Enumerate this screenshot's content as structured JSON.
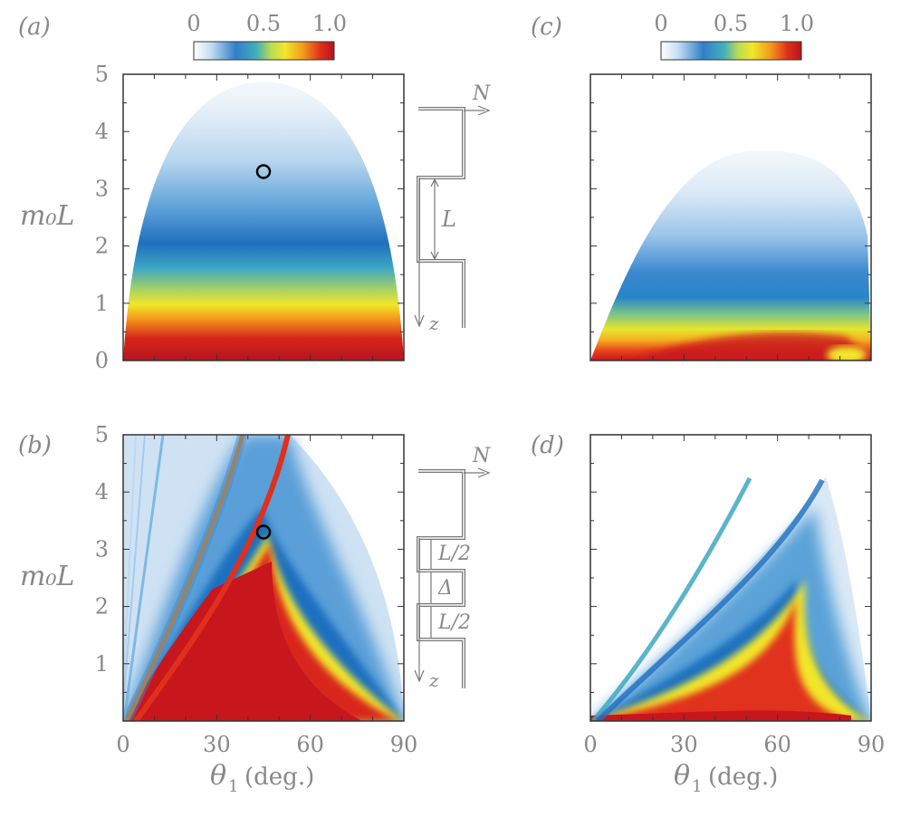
{
  "colors": {
    "cmap": [
      "#ffffff",
      "#cfe3f3",
      "#5aa2d8",
      "#1f6fbf",
      "#3fa7c8",
      "#9fd27a",
      "#f2e62a",
      "#f5a21c",
      "#e83a1d",
      "#c8161d"
    ],
    "axis": "#333333",
    "label": "#888888",
    "marker": "#000000"
  },
  "colorbar": {
    "ticks": [
      "0",
      "0.5",
      "1.0"
    ]
  },
  "axes": {
    "x_ticks": [
      "0",
      "30",
      "60",
      "90"
    ],
    "y_ticks_a": [
      "0",
      "1",
      "2",
      "3",
      "4",
      "5"
    ],
    "y_ticks_b": [
      "1",
      "2",
      "3",
      "4",
      "5"
    ],
    "ylabel": "m₀L",
    "xlabel_sym": "θ",
    "xlabel_sub": "1",
    "xlabel_unit": "(deg.)"
  },
  "schematic_a": {
    "top_label": "N",
    "mid_label": "L",
    "bottom_label": "z"
  },
  "schematic_b": {
    "top_label": "N",
    "label_1": "L/2",
    "label_2": "Δ",
    "label_3": "L/2",
    "bottom_label": "z"
  },
  "chart_data": [
    {
      "panel": "(a)",
      "type": "heatmap",
      "x_range": [
        0,
        90
      ],
      "y_range": [
        0,
        5
      ],
      "marker": {
        "x": 45,
        "y": 3.3
      },
      "colorbar": [
        0,
        1.0
      ]
    },
    {
      "panel": "(b)",
      "type": "heatmap",
      "x_range": [
        0,
        90
      ],
      "y_range": [
        0,
        5
      ],
      "marker": {
        "x": 45,
        "y": 3.3
      }
    },
    {
      "panel": "(c)",
      "type": "heatmap",
      "x_range": [
        0,
        90
      ],
      "y_range": [
        0,
        5
      ],
      "colorbar": [
        0,
        1.0
      ]
    },
    {
      "panel": "(d)",
      "type": "heatmap",
      "x_range": [
        0,
        90
      ],
      "y_range": [
        0,
        5
      ]
    }
  ]
}
